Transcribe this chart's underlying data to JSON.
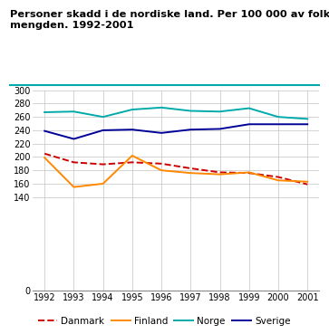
{
  "title_line1": "Personer skadd i de nordiske land. Per 100 000 av folke-",
  "title_line2": "mengden. 1992-2001",
  "years": [
    1992,
    1993,
    1994,
    1995,
    1996,
    1997,
    1998,
    1999,
    2000,
    2001
  ],
  "Danmark": [
    205,
    192,
    189,
    192,
    190,
    183,
    177,
    176,
    170,
    159
  ],
  "Finland": [
    199,
    155,
    160,
    202,
    180,
    176,
    174,
    177,
    165,
    163
  ],
  "Norge": [
    267,
    268,
    260,
    271,
    274,
    269,
    268,
    273,
    260,
    257
  ],
  "Sverige": [
    239,
    227,
    240,
    241,
    236,
    241,
    242,
    249,
    249,
    249
  ],
  "Danmark_color": "#cc0000",
  "Finland_color": "#ff8800",
  "Norge_color": "#00aaaa",
  "Sverige_color": "#000099",
  "teal_line_color": "#00aaaa",
  "background_color": "#ffffff",
  "grid_color": "#cccccc",
  "yticks": [
    0,
    140,
    160,
    180,
    200,
    220,
    240,
    260,
    280,
    300
  ]
}
